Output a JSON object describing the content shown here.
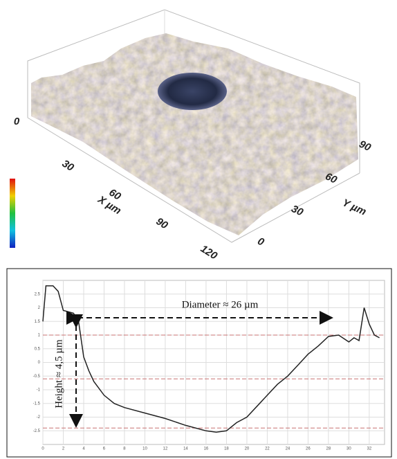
{
  "chart_data": [
    {
      "type": "surface3d",
      "x_label": "X µm",
      "y_label": "Y µm",
      "xlim": [
        0,
        125
      ],
      "xticks": [
        30,
        60,
        90,
        120
      ],
      "ylim": [
        0,
        95
      ],
      "yticks": [
        0,
        30,
        60,
        90
      ],
      "zticks": [
        0
      ]
    },
    {
      "type": "line",
      "color": "#222222",
      "x": [
        0,
        0.3,
        1,
        1.5,
        2,
        3,
        3.5,
        4,
        4.5,
        5,
        6,
        7,
        8,
        10,
        12,
        14,
        16,
        17,
        18,
        19,
        20,
        21,
        22,
        23,
        24,
        25,
        26,
        27,
        28,
        29,
        30,
        30.5,
        31,
        31.5,
        32,
        32.5,
        33
      ],
      "y": [
        1.5,
        2.8,
        2.8,
        2.6,
        1.9,
        1.8,
        1.5,
        0.2,
        -0.3,
        -0.7,
        -1.2,
        -1.5,
        -1.65,
        -1.85,
        -2.05,
        -2.3,
        -2.5,
        -2.55,
        -2.5,
        -2.2,
        -2.0,
        -1.6,
        -1.2,
        -0.8,
        -0.5,
        -0.1,
        0.3,
        0.6,
        0.95,
        1.0,
        0.75,
        0.9,
        0.8,
        2.0,
        1.4,
        1.0,
        0.9
      ],
      "xlim": [
        0,
        33.5
      ],
      "xticks": [
        0,
        2,
        4,
        6,
        8,
        10,
        12,
        14,
        16,
        18,
        20,
        22,
        24,
        26,
        28,
        30,
        32
      ],
      "ylim": [
        -3,
        3
      ],
      "yticks": [
        -2.5,
        -2,
        -1.5,
        -1,
        -0.5,
        0,
        0.5,
        1,
        1.5,
        2,
        2.5
      ],
      "ref_lines": [
        1.0,
        -0.6,
        -2.4
      ],
      "ref_color": "#c87070",
      "grid": true,
      "annotations": [
        "Diameter ≈ 26 µm",
        "Height ≈ 4,5 µm"
      ]
    }
  ]
}
